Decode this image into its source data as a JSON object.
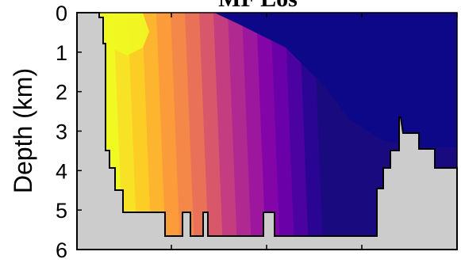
{
  "chart_data": {
    "type": "heatmap",
    "title": "MF Los",
    "ylabel": "Depth (km)",
    "xlabel": "",
    "ylim": [
      0,
      6
    ],
    "yticks": [
      "0",
      "1",
      "2",
      "3",
      "4",
      "5",
      "6"
    ],
    "y_reversed": true,
    "grid": false,
    "colormap": "plasma",
    "no_data_color": "#cccccc",
    "bathymetry_color": "#000000"
  }
}
